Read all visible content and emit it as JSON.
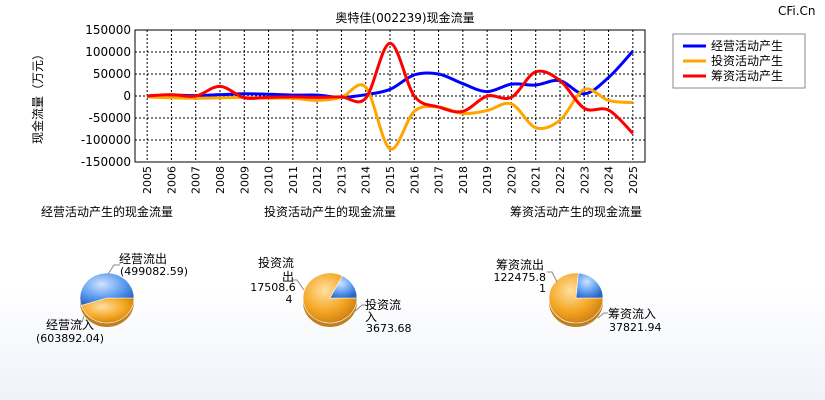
{
  "watermark": "CFi.Cn",
  "chart_data": [
    {
      "type": "line",
      "title": "奥特佳(002239)现金流量",
      "ylabel": "现金流量（万元）",
      "ylim": [
        -150000,
        150000
      ],
      "yticks": [
        150000,
        100000,
        50000,
        0,
        -50000,
        -100000,
        -150000
      ],
      "ytick_labels": [
        "150000",
        "100000",
        "50000",
        "0",
        "-50000",
        "-100000",
        "-150000"
      ],
      "grid": true,
      "legend_position": "top-right",
      "categories": [
        "2005",
        "2006",
        "2007",
        "2008",
        "2009",
        "2010",
        "2011",
        "2012",
        "2013",
        "2014",
        "2015",
        "2016",
        "2017",
        "2018",
        "2019",
        "2020",
        "2021",
        "2022",
        "2023",
        "2024",
        "2025"
      ],
      "series": [
        {
          "name": "经营活动产生",
          "color": "#0000ff",
          "values": [
            0,
            2000,
            1000,
            3000,
            5000,
            4000,
            2000,
            2000,
            -3000,
            3000,
            15000,
            48000,
            50000,
            28000,
            10000,
            27000,
            25000,
            35000,
            5000,
            42000,
            102000
          ]
        },
        {
          "name": "投资活动产生",
          "color": "#ffa500",
          "values": [
            -2000,
            -4000,
            -5000,
            -4000,
            -3000,
            -5000,
            -5000,
            -10000,
            -3000,
            20000,
            -120000,
            -35000,
            -25000,
            -40000,
            -33000,
            -18000,
            -72000,
            -55000,
            15000,
            -10000,
            -15000
          ]
        },
        {
          "name": "筹资活动产生",
          "color": "#ff0000",
          "values": [
            0,
            3000,
            0,
            22000,
            -4000,
            -3000,
            -2000,
            -3000,
            -2000,
            -5000,
            120000,
            0,
            -25000,
            -35000,
            0,
            -3000,
            55000,
            35000,
            -28000,
            -32000,
            -85000
          ]
        }
      ]
    },
    {
      "type": "pie",
      "title": "经营活动产生的现金流量",
      "slices": [
        {
          "label": "经营流出",
          "value_label": "(499082.59)",
          "value": 499082.59
        },
        {
          "label": "经营流入",
          "value_label": "(603892.04)",
          "value": 603892.04
        }
      ]
    },
    {
      "type": "pie",
      "title": "投资活动产生的现金流量",
      "slices": [
        {
          "label": "投资流出",
          "value_label": "17508.64",
          "value": 17508.64
        },
        {
          "label": "投资流入",
          "value_label": "3673.68",
          "value": 3673.68
        }
      ]
    },
    {
      "type": "pie",
      "title": "筹资活动产生的现金流量",
      "slices": [
        {
          "label": "筹资流出",
          "value_label": "122475.81",
          "value": 122475.81
        },
        {
          "label": "筹资流入",
          "value_label": "37821.94",
          "value": 37821.94
        }
      ]
    }
  ]
}
